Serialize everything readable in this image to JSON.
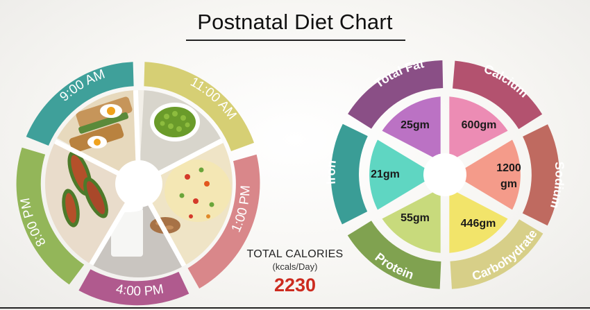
{
  "title": "Postnatal Diet Chart",
  "colors": {
    "teal": "#3fa09a",
    "yellow": "#d6cf74",
    "salmon": "#d9878a",
    "magenta": "#b05a8e",
    "olive": "#93b659",
    "purple": "#8a4f86",
    "rose": "#b3526f",
    "brick": "#bf6a60",
    "wheat": "#d7cf88",
    "green": "#80a250",
    "iron_teal": "#3a9d96",
    "calories_red": "#cc2b1f"
  },
  "meal_times": [
    {
      "label": "9:00 AM",
      "food": "sandwich-photo"
    },
    {
      "label": "11:00 AM",
      "food": "green-peas-photo"
    },
    {
      "label": "1:00 PM",
      "food": "rice-pulao-photo"
    },
    {
      "label": "4:00 PM",
      "food": "milk-and-almonds-photo"
    },
    {
      "label": "8:00 PM",
      "food": "stuffed-vegetable-photo"
    }
  ],
  "nutrients": [
    {
      "name": "Total Fat",
      "value": "25gm"
    },
    {
      "name": "Calcium",
      "value": "600gm"
    },
    {
      "name": "Sodium",
      "value": "1200 gm"
    },
    {
      "name": "Carbohydrate",
      "value": "446gm"
    },
    {
      "name": "Protein",
      "value": "55gm"
    },
    {
      "name": "Iron",
      "value": "21gm"
    }
  ],
  "total_calories": {
    "label": "TOTAL CALORIES",
    "unit": "(kcals/Day)",
    "value": "2230"
  }
}
